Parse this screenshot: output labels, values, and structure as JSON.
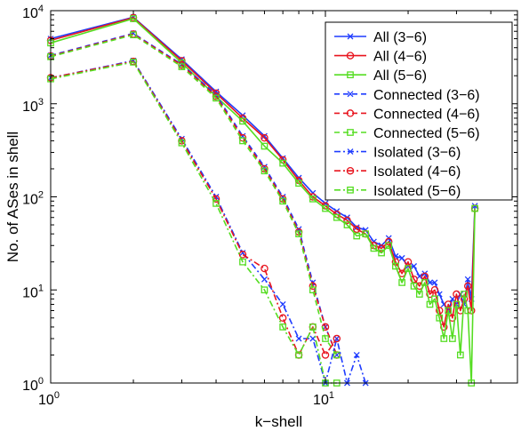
{
  "chart_data": {
    "type": "line",
    "x_scale": "log",
    "y_scale": "log",
    "xlabel": "k−shell",
    "ylabel": "No. of ASes in shell",
    "xlim": [
      1,
      50
    ],
    "ylim": [
      1,
      10000
    ],
    "x_ticks": [
      {
        "base": "10",
        "exp": "0",
        "value": 1
      },
      {
        "base": "10",
        "exp": "1",
        "value": 10
      }
    ],
    "y_ticks": [
      {
        "base": "10",
        "exp": "0",
        "value": 1
      },
      {
        "base": "10",
        "exp": "1",
        "value": 10
      },
      {
        "base": "10",
        "exp": "2",
        "value": 100
      },
      {
        "base": "10",
        "exp": "3",
        "value": 1000
      },
      {
        "base": "10",
        "exp": "4",
        "value": 10000
      }
    ],
    "grid": false,
    "legend_position": "top-right",
    "series": [
      {
        "name": "All (3−6)",
        "color": "#1f3cff",
        "dash": "solid",
        "marker": "x",
        "x": [
          1,
          2,
          3,
          4,
          5,
          6,
          7,
          8,
          9,
          10,
          11,
          12,
          13,
          14,
          15,
          16,
          17,
          18,
          19,
          20,
          21,
          22,
          23,
          24,
          25,
          26,
          27,
          28,
          29,
          30,
          31,
          32,
          33,
          34,
          35
        ],
        "y": [
          5000,
          8500,
          3000,
          1350,
          750,
          450,
          260,
          160,
          110,
          85,
          70,
          60,
          47,
          44,
          33,
          30,
          36,
          23,
          22,
          18,
          18,
          14,
          15,
          12,
          12,
          9,
          7,
          6,
          8,
          7,
          9,
          7,
          13,
          8,
          80
        ]
      },
      {
        "name": "All (4−6)",
        "color": "#e8141e",
        "dash": "solid",
        "marker": "o",
        "x": [
          1,
          2,
          3,
          4,
          5,
          6,
          7,
          8,
          9,
          10,
          11,
          12,
          13,
          14,
          15,
          16,
          17,
          18,
          19,
          20,
          21,
          22,
          23,
          24,
          25,
          26,
          27,
          28,
          29,
          30,
          31,
          32,
          33,
          34,
          35
        ],
        "y": [
          4800,
          8400,
          2900,
          1300,
          700,
          430,
          250,
          150,
          100,
          80,
          65,
          56,
          45,
          40,
          30,
          28,
          33,
          20,
          15,
          20,
          13,
          11,
          14,
          9,
          10,
          6,
          4,
          7,
          5,
          9,
          6,
          8,
          11,
          6,
          75
        ]
      },
      {
        "name": "All (5−6)",
        "color": "#55dd22",
        "dash": "solid",
        "marker": "s",
        "x": [
          1,
          2,
          3,
          4,
          5,
          6,
          7,
          8,
          9,
          10,
          11,
          12,
          13,
          14,
          15,
          16,
          17,
          18,
          19,
          20,
          21,
          22,
          23,
          24,
          25,
          26,
          27,
          28,
          29,
          30,
          31,
          32,
          33,
          34,
          35
        ],
        "y": [
          4500,
          8200,
          2750,
          1200,
          650,
          350,
          230,
          140,
          95,
          75,
          60,
          50,
          38,
          40,
          28,
          25,
          30,
          18,
          12,
          17,
          11,
          9,
          12,
          7,
          8,
          5,
          3,
          6,
          3,
          7,
          2,
          9,
          6,
          1,
          75
        ]
      },
      {
        "name": "Connected (3−6)",
        "color": "#1f3cff",
        "dash": "dash",
        "marker": "x",
        "x": [
          1,
          2,
          3,
          4,
          5,
          6,
          7,
          8,
          9,
          10,
          11
        ],
        "y": [
          3300,
          5700,
          2650,
          1250,
          450,
          210,
          100,
          45,
          12,
          4,
          2
        ]
      },
      {
        "name": "Connected (4−6)",
        "color": "#e8141e",
        "dash": "dash",
        "marker": "o",
        "x": [
          1,
          2,
          3,
          4,
          5,
          6,
          7,
          8,
          9,
          10,
          11
        ],
        "y": [
          3250,
          5600,
          2600,
          1200,
          430,
          200,
          95,
          42,
          11,
          4,
          2
        ]
      },
      {
        "name": "Connected (5−6)",
        "color": "#55dd22",
        "dash": "dash",
        "marker": "s",
        "x": [
          1,
          2,
          3,
          4,
          5,
          6,
          7,
          8,
          9,
          10,
          11
        ],
        "y": [
          3200,
          5500,
          2500,
          1150,
          400,
          190,
          90,
          40,
          10,
          3,
          2
        ]
      },
      {
        "name": "Isolated (3−6)",
        "color": "#1f3cff",
        "dash": "dashdot",
        "marker": "x",
        "x": [
          1,
          2,
          3,
          4,
          5,
          6,
          7,
          8,
          9,
          10,
          11,
          12,
          13,
          14
        ],
        "y": [
          1900,
          2900,
          420,
          100,
          25,
          13,
          7,
          3,
          3,
          1,
          3,
          1,
          2,
          1
        ]
      },
      {
        "name": "Isolated (4−6)",
        "color": "#e8141e",
        "dash": "dashdot",
        "marker": "o",
        "x": [
          1,
          2,
          3,
          4,
          5,
          6,
          7,
          8,
          9,
          10,
          11
        ],
        "y": [
          1900,
          2850,
          400,
          95,
          24,
          17,
          5,
          2,
          4,
          2,
          3
        ]
      },
      {
        "name": "Isolated (5−6)",
        "color": "#55dd22",
        "dash": "dashdot",
        "marker": "s",
        "x": [
          1,
          2,
          3,
          4,
          5,
          6,
          7,
          8,
          9,
          10,
          11
        ],
        "y": [
          1850,
          2800,
          380,
          85,
          20,
          10,
          4,
          2,
          4,
          1,
          1
        ]
      }
    ]
  }
}
